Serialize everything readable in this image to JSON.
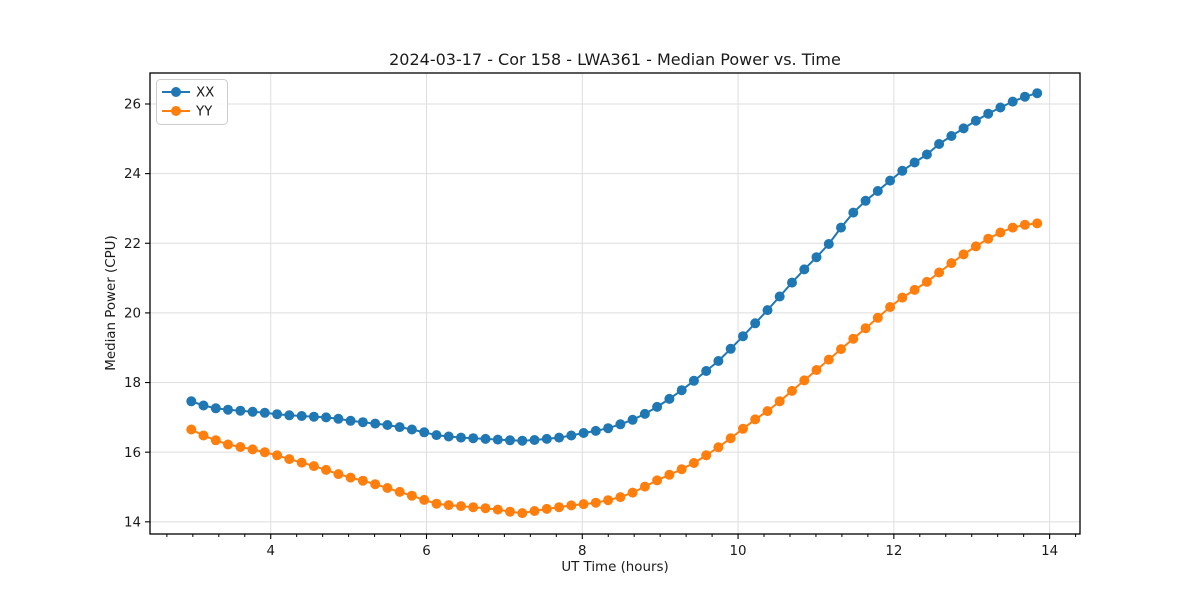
{
  "chart_data": {
    "type": "line",
    "title": "2024-03-17 - Cor 158 - LWA361 - Median Power vs. Time",
    "xlabel": "UT Time (hours)",
    "ylabel": "Median Power (CPU)",
    "xlim": [
      2.45,
      14.39
    ],
    "ylim": [
      13.65,
      26.89
    ],
    "xticks": [
      4,
      6,
      8,
      10,
      12,
      14
    ],
    "yticks": [
      14,
      16,
      18,
      20,
      22,
      24,
      26
    ],
    "x_minor_tick_step": 0.33333,
    "grid": true,
    "legend_position": "upper left",
    "x": [
      2.98,
      3.137,
      3.295,
      3.452,
      3.61,
      3.767,
      3.924,
      4.082,
      4.239,
      4.397,
      4.554,
      4.711,
      4.869,
      5.026,
      5.184,
      5.341,
      5.498,
      5.656,
      5.813,
      5.971,
      6.128,
      6.285,
      6.443,
      6.6,
      6.758,
      6.915,
      7.072,
      7.23,
      7.387,
      7.545,
      7.702,
      7.859,
      8.017,
      8.174,
      8.332,
      8.489,
      8.646,
      8.804,
      8.961,
      9.119,
      9.276,
      9.433,
      9.591,
      9.748,
      9.906,
      10.063,
      10.22,
      10.378,
      10.535,
      10.693,
      10.85,
      11.007,
      11.165,
      11.322,
      11.48,
      11.637,
      11.794,
      11.952,
      12.109,
      12.267,
      12.424,
      12.581,
      12.739,
      12.896,
      13.054,
      13.211,
      13.368,
      13.526,
      13.683,
      13.841
    ],
    "series": [
      {
        "name": "XX",
        "color": "#1f77b4",
        "values": [
          17.46,
          17.34,
          17.26,
          17.22,
          17.19,
          17.16,
          17.13,
          17.09,
          17.06,
          17.04,
          17.02,
          17.0,
          16.96,
          16.9,
          16.86,
          16.82,
          16.78,
          16.72,
          16.65,
          16.57,
          16.49,
          16.45,
          16.42,
          16.4,
          16.38,
          16.36,
          16.34,
          16.33,
          16.35,
          16.38,
          16.42,
          16.48,
          16.55,
          16.61,
          16.69,
          16.8,
          16.93,
          17.1,
          17.3,
          17.53,
          17.78,
          18.05,
          18.33,
          18.62,
          18.97,
          19.33,
          19.7,
          20.08,
          20.47,
          20.87,
          21.25,
          21.6,
          21.98,
          22.45,
          22.88,
          23.22,
          23.5,
          23.8,
          24.08,
          24.32,
          24.55,
          24.85,
          25.08,
          25.3,
          25.52,
          25.72,
          25.9,
          26.07,
          26.21,
          26.31
        ]
      },
      {
        "name": "YY",
        "color": "#ff7f0e",
        "values": [
          16.65,
          16.48,
          16.34,
          16.22,
          16.15,
          16.08,
          16.0,
          15.91,
          15.8,
          15.7,
          15.6,
          15.49,
          15.37,
          15.27,
          15.18,
          15.08,
          14.97,
          14.86,
          14.75,
          14.63,
          14.52,
          14.48,
          14.45,
          14.42,
          14.39,
          14.35,
          14.29,
          14.25,
          14.31,
          14.37,
          14.42,
          14.47,
          14.51,
          14.55,
          14.62,
          14.71,
          14.84,
          15.01,
          15.19,
          15.35,
          15.51,
          15.69,
          15.91,
          16.14,
          16.4,
          16.67,
          16.94,
          17.18,
          17.46,
          17.76,
          18.06,
          18.36,
          18.66,
          18.96,
          19.26,
          19.56,
          19.86,
          20.17,
          20.44,
          20.66,
          20.89,
          21.16,
          21.43,
          21.68,
          21.91,
          22.13,
          22.31,
          22.45,
          22.53,
          22.57
        ]
      }
    ],
    "style": {
      "grid_color": "#dedede",
      "spine_color": "#000000",
      "marker_radius": 5,
      "line_width": 2
    }
  }
}
